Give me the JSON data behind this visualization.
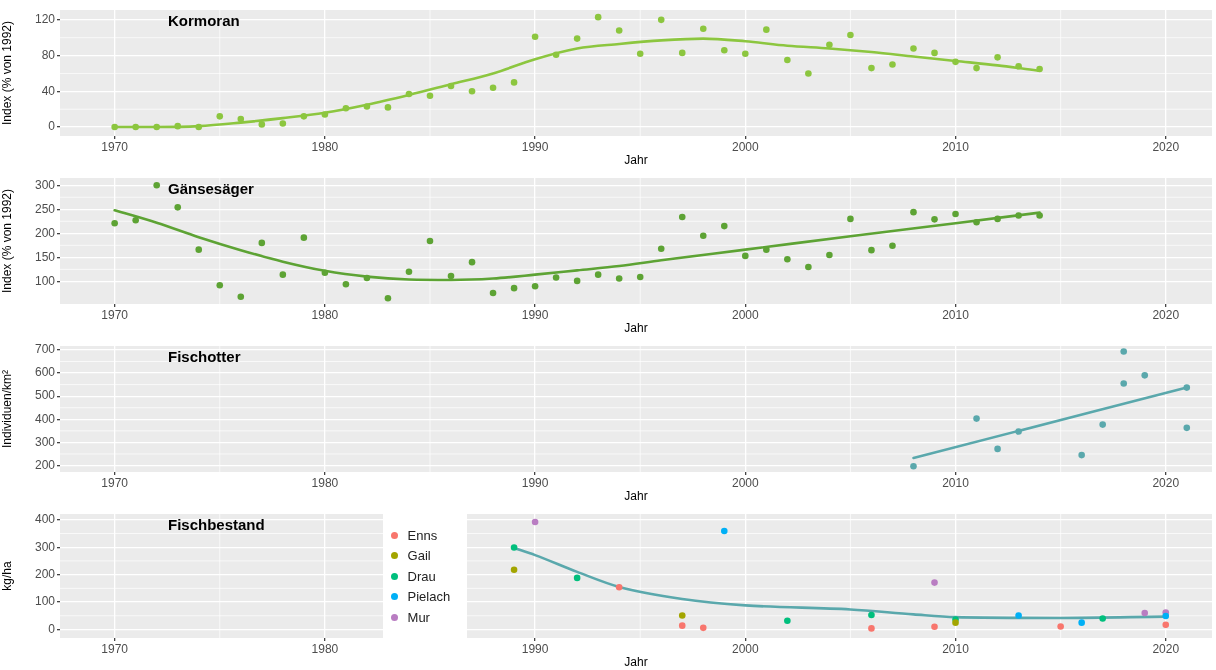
{
  "chart_data": [
    {
      "type": "scatter",
      "title": "Kormoran",
      "xlabel": "Jahr",
      "ylabel": "Index (% von 1992)",
      "xlim": [
        1967.4,
        2022.2
      ],
      "xticks": [
        1970,
        1980,
        1990,
        2000,
        2010,
        2020
      ],
      "ylim": [
        -10,
        131
      ],
      "yticks": [
        0,
        40,
        80,
        120
      ],
      "grid": true,
      "legend": false,
      "marker": "circle",
      "series": [
        {
          "color": "#8cc63f",
          "x": [
            1970,
            1971,
            1972,
            1973,
            1974,
            1975,
            1976,
            1977,
            1978,
            1979,
            1980,
            1981,
            1982,
            1983,
            1984,
            1985,
            1986,
            1987,
            1988,
            1989,
            1990,
            1991,
            1992,
            1993,
            1994,
            1995,
            1996,
            1997,
            1998,
            1999,
            2000,
            2001,
            2002,
            2003,
            2004,
            2005,
            2006,
            2007,
            2008,
            2009,
            2010,
            2011,
            2012,
            2013,
            2014
          ],
          "values": [
            0,
            0,
            0,
            1,
            0,
            12,
            9,
            3,
            4,
            12,
            14,
            21,
            23,
            22,
            37,
            35,
            46,
            40,
            44,
            50,
            101,
            81,
            99,
            123,
            108,
            82,
            120,
            83,
            110,
            86,
            82,
            109,
            75,
            60,
            92,
            103,
            66,
            70,
            88,
            83,
            73,
            66,
            78,
            68,
            65
          ]
        },
        {
          "type": "line",
          "marker": "none",
          "color": "#8cc63f",
          "x": [
            1970,
            1972,
            1974,
            1976,
            1978,
            1980,
            1982,
            1984,
            1986,
            1988,
            1990,
            1992,
            1994,
            1996,
            1998,
            2000,
            2002,
            2004,
            2006,
            2008,
            2010,
            2012,
            2014
          ],
          "values": [
            0,
            0,
            1,
            5,
            10,
            16,
            25,
            36,
            48,
            60,
            76,
            88,
            93,
            97,
            99,
            96,
            91,
            88,
            84,
            79,
            74,
            69,
            63
          ]
        }
      ]
    },
    {
      "type": "scatter",
      "title": "Gänsesäger",
      "xlabel": "Jahr",
      "ylabel": "Index (% von 1992)",
      "xlim": [
        1967.4,
        2022.2
      ],
      "xticks": [
        1970,
        1980,
        1990,
        2000,
        2010,
        2020
      ],
      "ylim": [
        53,
        315
      ],
      "yticks": [
        100,
        150,
        200,
        250,
        300
      ],
      "grid": true,
      "legend": false,
      "marker": "circle",
      "series": [
        {
          "color": "#5da334",
          "x": [
            1970,
            1971,
            1972,
            1973,
            1974,
            1975,
            1976,
            1977,
            1978,
            1979,
            1980,
            1981,
            1982,
            1983,
            1984,
            1985,
            1986,
            1987,
            1988,
            1989,
            1990,
            1991,
            1992,
            1993,
            1994,
            1995,
            1996,
            1997,
            1998,
            1999,
            2000,
            2001,
            2002,
            2003,
            2004,
            2005,
            2006,
            2007,
            2008,
            2009,
            2010,
            2011,
            2012,
            2013,
            2014
          ],
          "values": [
            221,
            227,
            300,
            254,
            166,
            92,
            68,
            180,
            114,
            191,
            118,
            94,
            107,
            65,
            120,
            184,
            111,
            140,
            76,
            86,
            90,
            108,
            101,
            114,
            106,
            109,
            168,
            234,
            195,
            215,
            153,
            166,
            146,
            130,
            155,
            230,
            165,
            174,
            244,
            229,
            240,
            223,
            230,
            237,
            237
          ]
        },
        {
          "type": "line",
          "marker": "none",
          "color": "#5da334",
          "x": [
            1970,
            1972,
            1974,
            1976,
            1978,
            1980,
            1982,
            1984,
            1986,
            1988,
            1990,
            1992,
            1994,
            1996,
            2000,
            2005,
            2010,
            2014
          ],
          "values": [
            248,
            222,
            192,
            165,
            141,
            122,
            110,
            104,
            103,
            106,
            114,
            123,
            132,
            144,
            166,
            194,
            221,
            243
          ]
        }
      ]
    },
    {
      "type": "scatter",
      "title": "Fischotter",
      "xlabel": "Jahr",
      "ylabel": "Individuen/km²",
      "xlim": [
        1967.4,
        2022.2
      ],
      "xticks": [
        1970,
        1980,
        1990,
        2000,
        2010,
        2020
      ],
      "ylim": [
        172,
        717
      ],
      "yticks": [
        200,
        300,
        400,
        500,
        600,
        700
      ],
      "grid": true,
      "legend": false,
      "marker": "circle",
      "series": [
        {
          "color": "#5aa8ac",
          "x": [
            2008,
            2011,
            2012,
            2013,
            2016,
            2017,
            2018,
            2018,
            2019,
            2021,
            2021
          ],
          "values": [
            197,
            403,
            272,
            347,
            245,
            377,
            693,
            555,
            590,
            537,
            363
          ]
        },
        {
          "type": "line",
          "marker": "none",
          "color": "#5aa8ac",
          "x": [
            2008,
            2021
          ],
          "values": [
            233,
            537
          ]
        }
      ]
    },
    {
      "type": "scatter",
      "title": "Fischbestand",
      "xlabel": "Jahr",
      "ylabel": "kg/ha",
      "xlim": [
        1967.4,
        2022.2
      ],
      "xticks": [
        1970,
        1980,
        1990,
        2000,
        2010,
        2020
      ],
      "ylim": [
        -31,
        421
      ],
      "yticks": [
        0,
        100,
        200,
        300,
        400
      ],
      "grid": true,
      "legend": "left",
      "marker": "circle",
      "series": [
        {
          "name": "Enns",
          "color": "#f8766d",
          "x": [
            1994,
            1997,
            1998,
            2006,
            2009,
            2015,
            2020
          ],
          "values": [
            154,
            14,
            6,
            4,
            10,
            11,
            17
          ]
        },
        {
          "name": "Gail",
          "color": "#a3a500",
          "x": [
            1989,
            1997,
            2010
          ],
          "values": [
            218,
            51,
            25
          ]
        },
        {
          "name": "Drau",
          "color": "#00bf7d",
          "x": [
            1989,
            1992,
            2002,
            2006,
            2010,
            2017
          ],
          "values": [
            299,
            188,
            32,
            53,
            36,
            40
          ]
        },
        {
          "name": "Pielach",
          "color": "#00b0f6",
          "x": [
            1999,
            2013,
            2016,
            2020
          ],
          "values": [
            359,
            51,
            25,
            49
          ]
        },
        {
          "name": "Mur",
          "color": "#b97dc2",
          "x": [
            1990,
            2009,
            2019,
            2020
          ],
          "values": [
            392,
            171,
            60,
            62
          ]
        },
        {
          "type": "line",
          "marker": "none",
          "color": "#5aa8ac",
          "x": [
            1989,
            1990,
            1992,
            1994,
            1997,
            2000,
            2005,
            2008,
            2010,
            2015,
            2020
          ],
          "values": [
            297,
            271,
            210,
            155,
            111,
            88,
            73,
            55,
            45,
            42,
            47
          ]
        }
      ]
    }
  ]
}
